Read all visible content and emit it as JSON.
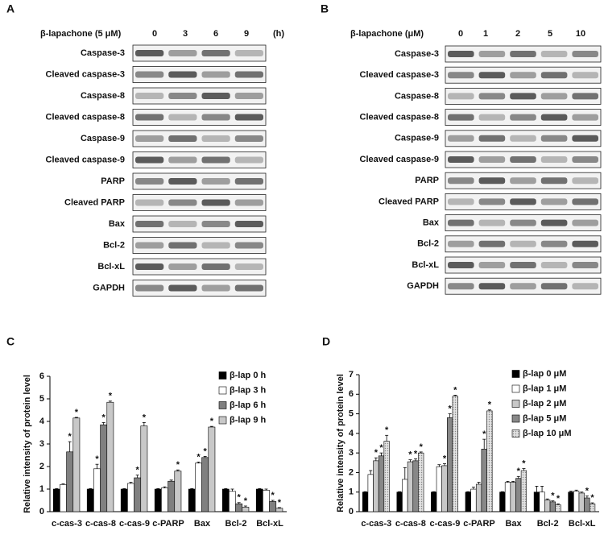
{
  "blots": [
    {
      "panel": "A",
      "treatment": "β-lapachone (5 μM)",
      "doses": [
        "0",
        "3",
        "6",
        "9"
      ],
      "unit": "(h)",
      "proteins": [
        "Caspase-3",
        "Cleaved caspase-3",
        "Caspase-8",
        "Cleaved caspase-8",
        "Caspase-9",
        "Cleaved caspase-9",
        "PARP",
        "Cleaved PARP",
        "Bax",
        "Bcl-2",
        "Bcl-xL",
        "GAPDH"
      ]
    },
    {
      "panel": "B",
      "treatment": "β-lapachone (μM)",
      "doses": [
        "0",
        "1",
        "2",
        "5",
        "10"
      ],
      "proteins": [
        "Caspase-3",
        "Cleaved caspase-3",
        "Caspase-8",
        "Cleaved caspase-8",
        "Caspase-9",
        "Cleaved caspase-9",
        "PARP",
        "Cleaved PARP",
        "Bax",
        "Bcl-2",
        "Bcl-xL",
        "GAPDH"
      ]
    }
  ],
  "chart_data": [
    {
      "type": "bar",
      "panel": "C",
      "y_label": "Relative intensity of protein level",
      "categories": [
        "c-cas-3",
        "c-cas-8",
        "c-cas-9",
        "c-PARP",
        "Bax",
        "Bcl-2",
        "Bcl-xL"
      ],
      "ylim": [
        0,
        6
      ],
      "yticks": [
        0,
        1,
        2,
        3,
        4,
        5,
        6
      ],
      "legend": "upper right",
      "series": [
        {
          "name": "β-lap 0 h",
          "color": "#000000",
          "values": [
            1,
            1,
            1,
            1,
            1,
            1,
            1
          ],
          "errors": [
            0.02,
            0.02,
            0.02,
            0.02,
            0.02,
            0.02,
            0.02
          ],
          "significance": [
            null,
            null,
            null,
            null,
            null,
            null,
            null
          ]
        },
        {
          "name": "β-lap 3 h",
          "color": "#ffffff",
          "values": [
            1.2,
            1.9,
            1.25,
            1.05,
            2.15,
            0.9,
            0.95
          ],
          "errors": [
            0.03,
            0.2,
            0.05,
            0.05,
            0.05,
            0.1,
            0.05
          ],
          "significance": [
            null,
            "*",
            null,
            null,
            "*",
            null,
            null
          ]
        },
        {
          "name": "β-lap 6 h",
          "color": "#808080",
          "values": [
            2.65,
            3.85,
            1.5,
            1.35,
            2.4,
            0.35,
            0.45
          ],
          "errors": [
            0.45,
            0.1,
            0.12,
            0.05,
            0.05,
            0.05,
            0.05
          ],
          "significance": [
            "*",
            "*",
            "*",
            null,
            "*",
            "*",
            "*"
          ]
        },
        {
          "name": "β-lap 9 h",
          "color": "#c8c8c8",
          "values": [
            4.15,
            4.85,
            3.8,
            1.8,
            3.75,
            0.2,
            0.15
          ],
          "errors": [
            0.03,
            0.05,
            0.15,
            0.05,
            0.03,
            0.05,
            0.03
          ],
          "significance": [
            "*",
            "*",
            "*",
            "*",
            "*",
            "*",
            "*"
          ]
        }
      ]
    },
    {
      "type": "bar",
      "panel": "D",
      "y_label": "Relative intensity of protein level",
      "categories": [
        "c-cas-3",
        "c-cas-8",
        "c-cas-9",
        "c-PARP",
        "Bax",
        "Bcl-2",
        "Bcl-xL"
      ],
      "ylim": [
        0,
        7
      ],
      "yticks": [
        0,
        1,
        2,
        3,
        4,
        5,
        6,
        7
      ],
      "legend": "upper right",
      "series": [
        {
          "name": "β-lap 0 μM",
          "color": "#000000",
          "values": [
            1,
            1,
            1,
            1,
            1,
            1,
            1
          ],
          "errors": [
            0.02,
            0.02,
            0.02,
            0.02,
            0.02,
            0.3,
            0.05
          ],
          "significance": [
            null,
            null,
            null,
            null,
            null,
            null,
            null
          ]
        },
        {
          "name": "β-lap 1 μM",
          "color": "#ffffff",
          "values": [
            1.9,
            1.65,
            2.3,
            1.15,
            1.5,
            1.0,
            1.05
          ],
          "errors": [
            0.2,
            0.6,
            0.1,
            0.1,
            0.05,
            0.3,
            0.05
          ],
          "significance": [
            null,
            null,
            null,
            null,
            null,
            null,
            null
          ]
        },
        {
          "name": "β-lap 2 μM",
          "color": "#c8c8c8",
          "values": [
            2.6,
            2.55,
            2.35,
            1.4,
            1.5,
            0.6,
            0.95
          ],
          "errors": [
            0.15,
            0.1,
            0.1,
            0.1,
            0.05,
            0.05,
            0.05
          ],
          "significance": [
            "*",
            "*",
            "*",
            null,
            null,
            null,
            null
          ]
        },
        {
          "name": "β-lap 5 μM",
          "color": "#888888",
          "values": [
            2.85,
            2.6,
            4.8,
            3.2,
            1.7,
            0.5,
            0.7
          ],
          "errors": [
            0.15,
            0.1,
            0.2,
            0.5,
            0.1,
            0.05,
            0.1
          ],
          "significance": [
            "*",
            "*",
            "*",
            "*",
            "*",
            "*",
            "*"
          ]
        },
        {
          "name": "β-lap 10 μM",
          "color": "#e2e2e2",
          "values": [
            3.6,
            3.0,
            5.9,
            5.15,
            2.1,
            0.35,
            0.4
          ],
          "errors": [
            0.3,
            0.05,
            0.05,
            0.05,
            0.1,
            0.05,
            0.05
          ],
          "significance": [
            "*",
            "*",
            "*",
            "*",
            "*",
            "*",
            "*"
          ]
        }
      ]
    }
  ]
}
